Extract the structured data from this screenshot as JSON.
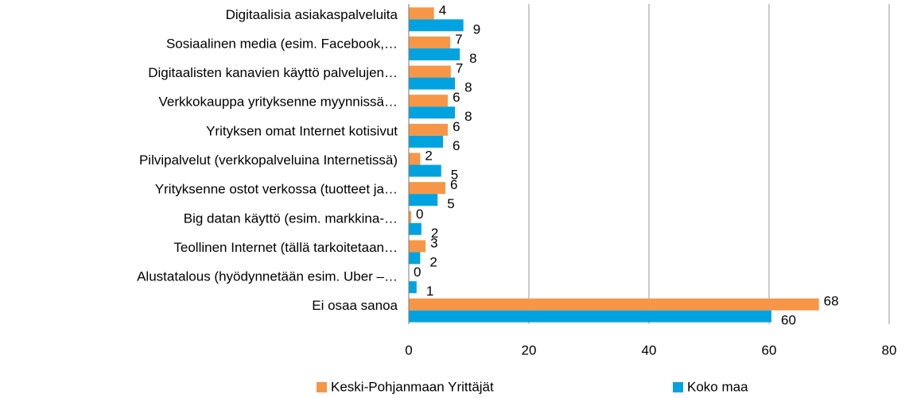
{
  "chart_data": {
    "type": "hbar",
    "categories": [
      "Digitaalisia asiakaspalveluita",
      "Sosiaalinen media (esim. Facebook,…",
      "Digitaalisten kanavien käyttö palvelujen…",
      "Verkkokauppa yrityksenne myynnissä…",
      "Yrityksen omat Internet kotisivut",
      "Pilvipalvelut  (verkkopalveluina Internetissä)",
      "Yrityksenne ostot verkossa (tuotteet ja…",
      "Big datan käyttö (esim. markkina-…",
      "Teollinen Internet (tällä tarkoitetaan…",
      "Alustatalous (hyödynnetään esim. Uber –…",
      "Ei osaa sanoa"
    ],
    "series": [
      {
        "name": "Keski-Pohjanmaan Yrittäjät",
        "color": "#f79646",
        "values": [
          4.2,
          6.9,
          7.0,
          6.5,
          6.5,
          1.9,
          6.1,
          0.4,
          2.8,
          0,
          68.3
        ],
        "value_labels": [
          "4",
          "7",
          "7",
          "6",
          "6",
          "2",
          "6",
          "0",
          "3",
          "0",
          "68"
        ]
      },
      {
        "name": "Koko maa",
        "color": "#00a3e0",
        "values": [
          9.1,
          8.5,
          7.7,
          7.7,
          5.7,
          5.4,
          4.8,
          2.1,
          1.9,
          1.3,
          60.4
        ],
        "value_labels": [
          "9",
          "8",
          "8",
          "8",
          "6",
          "5",
          "5",
          "2",
          "2",
          "1",
          "60"
        ]
      }
    ],
    "xlim": [
      0,
      80
    ],
    "xticks": [
      0,
      20,
      40,
      60,
      80
    ],
    "grid": true,
    "legend": "bottom"
  }
}
